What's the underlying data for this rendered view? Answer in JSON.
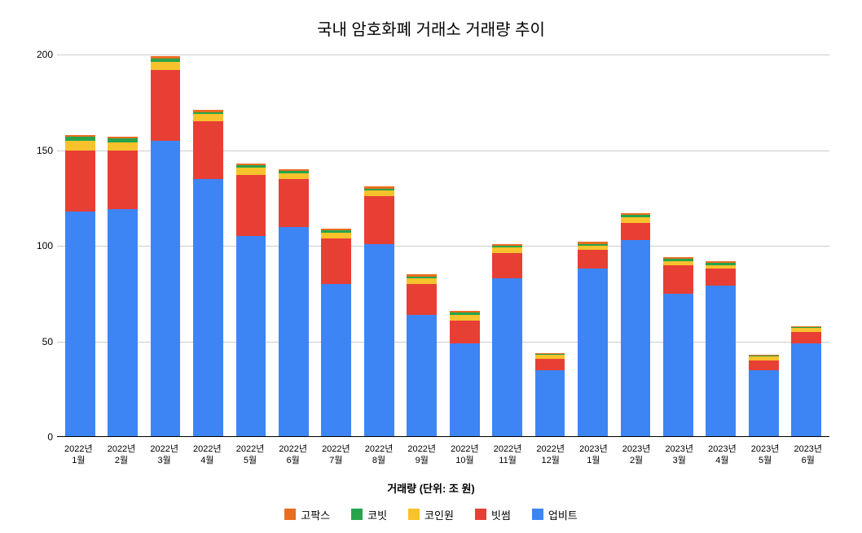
{
  "chart": {
    "type": "stacked-bar",
    "title": "국내 암호화폐 거래소 거래량 추이",
    "x_axis_title": "거래량 (단위: 조 원)",
    "title_fontsize": 20,
    "label_fontsize": 12,
    "axis_title_fontsize": 13,
    "background_color": "#ffffff",
    "grid_color": "#cccccc",
    "axis_color": "#000000",
    "bar_width_ratio": 0.7,
    "ylim": [
      0,
      200
    ],
    "ytick_step": 50,
    "yticks": [
      0,
      50,
      100,
      150,
      200
    ],
    "categories": [
      {
        "line1": "2022년",
        "line2": "1월"
      },
      {
        "line1": "2022년",
        "line2": "2월"
      },
      {
        "line1": "2022년",
        "line2": "3월"
      },
      {
        "line1": "2022년",
        "line2": "4월"
      },
      {
        "line1": "2022년",
        "line2": "5월"
      },
      {
        "line1": "2022년",
        "line2": "6월"
      },
      {
        "line1": "2022년",
        "line2": "7월"
      },
      {
        "line1": "2022년",
        "line2": "8월"
      },
      {
        "line1": "2022년",
        "line2": "9월"
      },
      {
        "line1": "2022년",
        "line2": "10월"
      },
      {
        "line1": "2022년",
        "line2": "11월"
      },
      {
        "line1": "2022년",
        "line2": "12월"
      },
      {
        "line1": "2023년",
        "line2": "1월"
      },
      {
        "line1": "2023년",
        "line2": "2월"
      },
      {
        "line1": "2023년",
        "line2": "3월"
      },
      {
        "line1": "2023년",
        "line2": "4월"
      },
      {
        "line1": "2023년",
        "line2": "5월"
      },
      {
        "line1": "2023년",
        "line2": "6월"
      }
    ],
    "series": [
      {
        "name": "업비트",
        "color": "#3d85f5"
      },
      {
        "name": "빗썸",
        "color": "#e83f35"
      },
      {
        "name": "코인원",
        "color": "#f8c22c"
      },
      {
        "name": "코빗",
        "color": "#26a44c"
      },
      {
        "name": "고팍스",
        "color": "#e86d1f"
      }
    ],
    "legend_order": [
      "고팍스",
      "코빗",
      "코인원",
      "빗썸",
      "업비트"
    ],
    "legend_colors": {
      "고팍스": "#e86d1f",
      "코빗": "#26a44c",
      "코인원": "#f8c22c",
      "빗썸": "#e83f35",
      "업비트": "#3d85f5"
    },
    "data": [
      {
        "업비트": 118,
        "빗썸": 32,
        "코인원": 5,
        "코빗": 2,
        "고팍스": 1
      },
      {
        "업비트": 119,
        "빗썸": 31,
        "코인원": 4,
        "코빗": 2,
        "고팍스": 1
      },
      {
        "업비트": 155,
        "빗썸": 37,
        "코인원": 4,
        "코빗": 2,
        "고팍스": 1
      },
      {
        "업비트": 135,
        "빗썸": 30,
        "코인원": 4,
        "코빗": 1,
        "고팍스": 1
      },
      {
        "업비트": 105,
        "빗썸": 32,
        "코인원": 4,
        "코빗": 1,
        "고팍스": 1
      },
      {
        "업비트": 110,
        "빗썸": 25,
        "코인원": 3,
        "코빗": 1,
        "고팍스": 1
      },
      {
        "업비트": 80,
        "빗썸": 24,
        "코인원": 3,
        "코빗": 1,
        "고팍스": 1
      },
      {
        "업비트": 101,
        "빗썸": 25,
        "코인원": 3,
        "코빗": 1,
        "고팍스": 1
      },
      {
        "업비트": 64,
        "빗썸": 16,
        "코인원": 3,
        "코빗": 1,
        "고팍스": 1
      },
      {
        "업비트": 49,
        "빗썸": 12,
        "코인원": 3,
        "코빗": 1,
        "고팍스": 1
      },
      {
        "업비트": 83,
        "빗썸": 13,
        "코인원": 3,
        "코빗": 1,
        "고팍스": 1
      },
      {
        "업비트": 35,
        "빗썸": 6,
        "코인원": 2,
        "코빗": 0.5,
        "고팍스": 0.5
      },
      {
        "업비트": 88,
        "빗썸": 10,
        "코인원": 2,
        "코빗": 1,
        "고팍스": 1
      },
      {
        "업비트": 103,
        "빗썸": 9,
        "코인원": 3,
        "코빗": 1,
        "고팍스": 1
      },
      {
        "업비트": 75,
        "빗썸": 15,
        "코인원": 2,
        "코빗": 1,
        "고팍스": 1
      },
      {
        "업비트": 79,
        "빗썸": 9,
        "코인원": 2,
        "코빗": 1,
        "고팍스": 1
      },
      {
        "업비트": 35,
        "빗썸": 5,
        "코인원": 2,
        "코빗": 0.5,
        "고팍스": 0.5
      },
      {
        "업비트": 49,
        "빗썸": 6,
        "코인원": 2,
        "코빗": 0.5,
        "고팍스": 0.5
      }
    ]
  }
}
